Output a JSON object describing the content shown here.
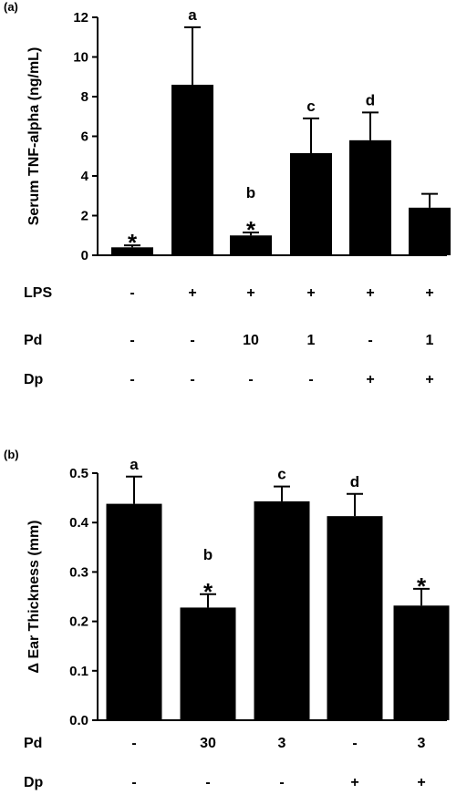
{
  "chart_data": [
    {
      "panel_label": "(a)",
      "type": "bar",
      "ylabel": "Serum TNF-alpha (ng/mL)",
      "ylim": [
        0,
        12
      ],
      "yticks": [
        "0",
        "2",
        "4",
        "6",
        "8",
        "10",
        "12"
      ],
      "bar_color": "#000000",
      "categories": [
        "1",
        "2",
        "3",
        "4",
        "5",
        "6"
      ],
      "values": [
        0.4,
        8.6,
        1.0,
        5.15,
        5.8,
        2.4
      ],
      "errors": [
        0.1,
        2.9,
        0.15,
        1.75,
        1.4,
        0.7
      ],
      "annotations": [
        {
          "bar": 0,
          "text": "*"
        },
        {
          "bar": 1,
          "text": "a"
        },
        {
          "bar": 2,
          "text": "b"
        },
        {
          "bar": 2,
          "text": "*"
        },
        {
          "bar": 3,
          "text": "c"
        },
        {
          "bar": 4,
          "text": "d"
        }
      ],
      "treatment_rows": [
        {
          "label": "LPS",
          "values": [
            "-",
            "+",
            "+",
            "+",
            "+",
            "+"
          ]
        },
        {
          "label": "Pd",
          "values": [
            "-",
            "-",
            "10",
            "1",
            "-",
            "1"
          ]
        },
        {
          "label": "Dp",
          "values": [
            "-",
            "-",
            "-",
            "-",
            "+",
            "+"
          ]
        }
      ]
    },
    {
      "panel_label": "(b)",
      "type": "bar",
      "ylabel": "Δ Ear Thickness (mm)",
      "ylim": [
        0,
        0.5
      ],
      "yticks": [
        "0.0",
        "0.1",
        "0.2",
        "0.3",
        "0.4",
        "0.5"
      ],
      "bar_color": "#000000",
      "categories": [
        "1",
        "2",
        "3",
        "4",
        "5"
      ],
      "values": [
        0.438,
        0.228,
        0.443,
        0.413,
        0.232
      ],
      "errors": [
        0.055,
        0.027,
        0.03,
        0.045,
        0.034
      ],
      "annotations": [
        {
          "bar": 0,
          "text": "a"
        },
        {
          "bar": 1,
          "text": "b"
        },
        {
          "bar": 1,
          "text": "*"
        },
        {
          "bar": 2,
          "text": "c"
        },
        {
          "bar": 3,
          "text": "d"
        },
        {
          "bar": 4,
          "text": "*"
        }
      ],
      "treatment_rows": [
        {
          "label": "Pd",
          "values": [
            "-",
            "30",
            "3",
            "-",
            "3"
          ]
        },
        {
          "label": "Dp",
          "values": [
            "-",
            "-",
            "-",
            "+",
            "+"
          ]
        }
      ]
    }
  ]
}
